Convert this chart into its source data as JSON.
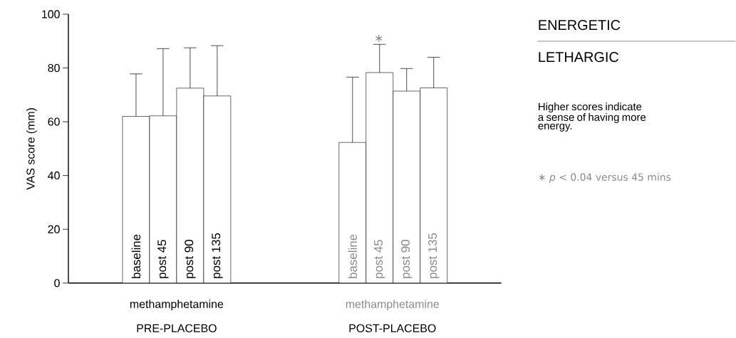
{
  "chart_data": {
    "type": "bar",
    "title": "ENERGETIC",
    "subtitle": "LETHARGIC",
    "ylabel": "VAS score  (mm)",
    "categories": [
      "baseline",
      "post  45",
      "post  90",
      "post  135",
      null,
      null,
      null,
      null,
      "baseline",
      "post  45",
      "post  90",
      "post  135"
    ],
    "values": [
      62.0,
      62.2,
      72.5,
      69.6,
      null,
      null,
      null,
      null,
      52.3,
      78.3,
      71.4,
      72.6
    ],
    "errors": [
      [
        62.0,
        77.8
      ],
      [
        62.2,
        87.2
      ],
      [
        72.5,
        87.5
      ],
      [
        69.6,
        88.3
      ],
      null,
      null,
      null,
      null,
      [
        52.3,
        76.6
      ],
      [
        78.3,
        88.8
      ],
      [
        71.4,
        79.8
      ],
      [
        72.6,
        84.0
      ]
    ],
    "color": "#ffffff",
    "ylim": [
      0,
      100
    ],
    "yticks": [
      0,
      20,
      40,
      60,
      80,
      100
    ],
    "grid": false,
    "annotations": [
      "methamphetamine",
      "PRE-PLACEBO",
      "methamphetamine",
      "POST-PLACEBO",
      "Higher scores indicate a sense of having more energy.",
      "∗ *p* < 0.04 versus 45 mins",
      "∗"
    ]
  }
}
